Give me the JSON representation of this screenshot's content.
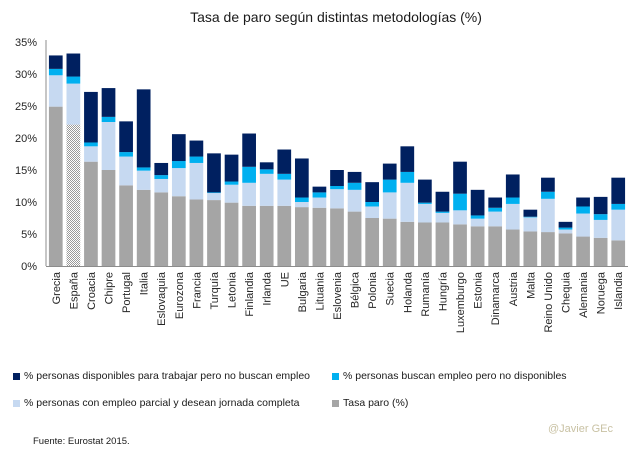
{
  "chart_data": {
    "type": "bar",
    "stacked": true,
    "title": "Tasa de paro según distintas metodologías (%)",
    "xlabel": "",
    "ylabel": "",
    "ylim": [
      0,
      35
    ],
    "yticks": [
      0,
      5,
      10,
      15,
      20,
      25,
      30,
      35
    ],
    "ytick_labels": [
      "0%",
      "5%",
      "10%",
      "15%",
      "20%",
      "25%",
      "30%",
      "35%"
    ],
    "grid": false,
    "legend_position": "bottom",
    "categories": [
      "Grecia",
      "España",
      "Croacia",
      "Chipre",
      "Portugal",
      "Italia",
      "Eslovaquia",
      "Eurozona",
      "Francia",
      "Turquía",
      "Letonia",
      "Finlandia",
      "Irlanda",
      "UE",
      "Bulgaria",
      "Lituania",
      "Eslovenia",
      "Bélgica",
      "Polonia",
      "Suecia",
      "Holanda",
      "Rumanía",
      "Hungría",
      "Luxemburgo",
      "Estonia",
      "Dinamarca",
      "Austria",
      "Malta",
      "Reino Unido",
      "Chequia",
      "Alemania",
      "Noruega",
      "Islandia"
    ],
    "highlight_category": "España",
    "series": [
      {
        "name": "Tasa paro (%)",
        "color": "#a5a5a5",
        "values": [
          24.9,
          22.1,
          16.3,
          15.0,
          12.6,
          11.9,
          11.5,
          10.9,
          10.4,
          10.3,
          9.9,
          9.4,
          9.4,
          9.4,
          9.2,
          9.1,
          9.0,
          8.5,
          7.5,
          7.4,
          6.9,
          6.8,
          6.8,
          6.5,
          6.2,
          6.2,
          5.7,
          5.4,
          5.3,
          5.1,
          4.6,
          4.4,
          4.0
        ]
      },
      {
        "name": "% personas con empleo parcial y desean jornada completa",
        "color": "#c6d9f1",
        "values": [
          4.9,
          6.4,
          2.4,
          7.5,
          4.5,
          3.0,
          2.1,
          4.4,
          5.7,
          1.1,
          2.8,
          3.6,
          5.0,
          4.1,
          0.8,
          1.6,
          3.0,
          3.4,
          1.8,
          4.1,
          6.1,
          2.9,
          1.5,
          2.2,
          1.2,
          2.3,
          4.0,
          2.2,
          5.2,
          0.6,
          3.6,
          2.8,
          4.8
        ]
      },
      {
        "name": "% personas buscan empleo pero no disponibles",
        "color": "#00b0f0",
        "values": [
          1.0,
          1.1,
          0.6,
          0.8,
          0.7,
          0.5,
          0.6,
          1.1,
          1.0,
          0.1,
          0.5,
          2.5,
          0.7,
          0.9,
          0.7,
          0.8,
          0.5,
          1.1,
          0.7,
          2.0,
          1.7,
          0.2,
          0.2,
          2.6,
          0.5,
          0.6,
          1.0,
          0.1,
          1.1,
          0.3,
          1.1,
          0.9,
          0.9
        ]
      },
      {
        "name": "% personas disponibles para trabajar pero no buscan empleo",
        "color": "#002060",
        "values": [
          2.1,
          3.6,
          7.9,
          4.5,
          4.8,
          12.2,
          1.9,
          4.2,
          2.5,
          6.1,
          4.2,
          5.2,
          1.1,
          3.8,
          6.1,
          0.9,
          2.5,
          1.7,
          3.1,
          2.5,
          4.0,
          3.6,
          3.1,
          5.0,
          4.0,
          1.6,
          3.6,
          1.1,
          2.2,
          0.9,
          1.4,
          2.7,
          4.1
        ]
      }
    ],
    "legend": [
      {
        "label": "% personas disponibles para trabajar pero no buscan empleo",
        "color": "#002060"
      },
      {
        "label": "% personas buscan empleo pero no disponibles",
        "color": "#00b0f0"
      },
      {
        "label": "% personas con empleo parcial y desean jornada completa",
        "color": "#c6d9f1"
      },
      {
        "label": "Tasa paro (%)",
        "color": "#a5a5a5"
      }
    ]
  },
  "footer": {
    "source": "Fuente: Eurostat 2015.",
    "credit": "@Javier GEc"
  }
}
